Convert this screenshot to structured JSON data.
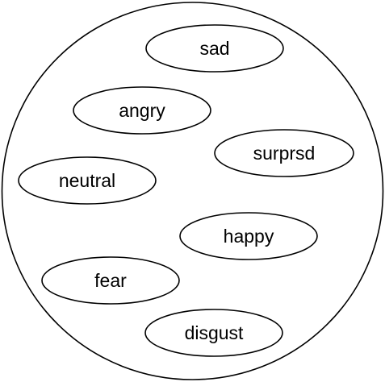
{
  "diagram": {
    "labels": {
      "sad": "sad",
      "angry": "angry",
      "surprised": "surprsd",
      "neutral": "neutral",
      "happy": "happy",
      "fear": "fear",
      "disgust": "disgust"
    }
  }
}
